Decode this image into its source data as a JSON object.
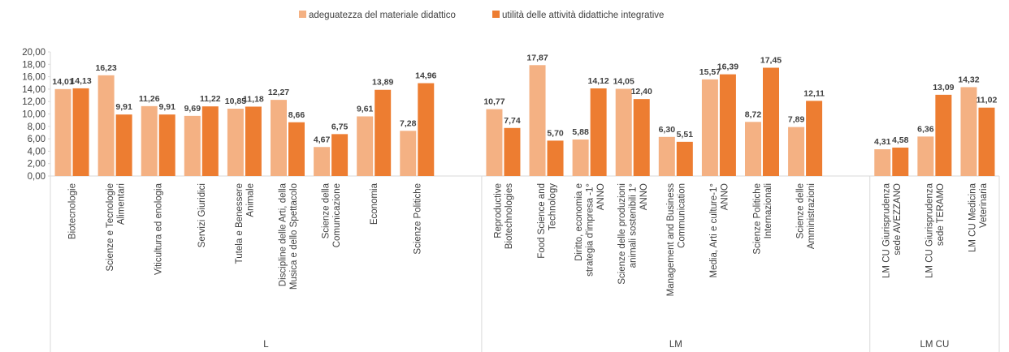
{
  "chart_data": {
    "type": "bar",
    "groups": [
      {
        "name": "L",
        "categories": [
          "Biotecnologie",
          "Scienze e Tecnologie\nAlimentari",
          "Viticultura ed enologia",
          "Servizi Giuridici",
          "Tutela e Benessere\nAnimale",
          "Discipline delle Arti, della\nMusica e dello Spettacolo",
          "Scienze della\nComunicazione",
          "Economia",
          "Scienze Politiche",
          null
        ]
      },
      {
        "name": "LM",
        "categories": [
          "Reproductive\nBiotechnologies",
          "Food Science and\nTechnology",
          "Diritto, economia e\nstrategia d'impresa -1°\nANNO",
          "Scienze delle produzioni\nanimali sostenibili 1°\nANNO",
          "Management and Business\nCommunication",
          "Media, Arti e culture-1°\nANNO",
          "Scienze Politiche\nInternazionali",
          "Scienze delle\nAmministrazioni",
          null
        ]
      },
      {
        "name": "LM CU",
        "categories": [
          "LM CU  Giurisprudenza\nsede AVEZZANO",
          "LM CU Giurisprudenza\nsede TERAMO",
          "LM CU Medicina\nVeterinaria"
        ]
      }
    ],
    "series": [
      {
        "name": "adeguatezza del materiale didattico",
        "color": "#f4b183",
        "values": [
          14.01,
          16.23,
          11.26,
          9.69,
          10.85,
          12.27,
          4.67,
          9.61,
          7.28,
          null,
          10.77,
          17.87,
          5.88,
          14.05,
          6.3,
          15.57,
          8.72,
          7.89,
          null,
          4.31,
          6.36,
          14.32
        ],
        "value_labels": [
          "14,01",
          "16,23",
          "11,26",
          "9,69",
          "10,85",
          "12,27",
          "4,67",
          "9,61",
          "7,28",
          null,
          "10,77",
          "17,87",
          "5,88",
          "14,05",
          "6,30",
          "15,57",
          "8,72",
          "7,89",
          null,
          "4,31",
          "6,36",
          "14,32"
        ]
      },
      {
        "name": "utilità delle attività didattiche integrative",
        "color": "#ed7d31",
        "values": [
          14.13,
          9.91,
          9.91,
          11.22,
          11.18,
          8.66,
          6.75,
          13.89,
          14.96,
          null,
          7.74,
          5.7,
          14.12,
          12.4,
          5.51,
          16.39,
          17.45,
          12.11,
          null,
          4.58,
          13.09,
          11.02
        ],
        "value_labels": [
          "14,13",
          "9,91",
          "9,91",
          "11,22",
          "11,18",
          "8,66",
          "6,75",
          "13,89",
          "14,96",
          null,
          "7,74",
          "5,70",
          "14,12",
          "12,40",
          "5,51",
          "16,39",
          "17,45",
          "12,11",
          null,
          "4,58",
          "13,09",
          "11,02"
        ]
      }
    ],
    "ylim": [
      0,
      20
    ],
    "yticks": [
      {
        "value": 0,
        "label": "0,00"
      },
      {
        "value": 2,
        "label": "2,00"
      },
      {
        "value": 4,
        "label": "4,00"
      },
      {
        "value": 6,
        "label": "6,00"
      },
      {
        "value": 8,
        "label": "8,00"
      },
      {
        "value": 10,
        "label": "10,00"
      },
      {
        "value": 12,
        "label": "12,00"
      },
      {
        "value": 14,
        "label": "14,00"
      },
      {
        "value": 16,
        "label": "16,00"
      },
      {
        "value": 18,
        "label": "18,00"
      },
      {
        "value": 20,
        "label": "20,00"
      }
    ],
    "legend": "top"
  }
}
